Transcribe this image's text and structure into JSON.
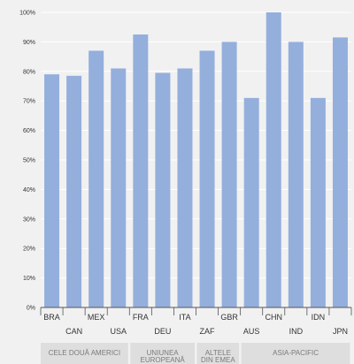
{
  "chart_data": {
    "type": "bar",
    "title": "",
    "xlabel": "",
    "ylabel": "",
    "categories": [
      "BRA",
      "CAN",
      "MEX",
      "USA",
      "FRA",
      "DEU",
      "ITA",
      "ZAF",
      "GBR",
      "AUS",
      "CHN",
      "IND",
      "IDN",
      "JPN"
    ],
    "values": [
      79,
      78.5,
      87,
      81,
      92.5,
      79.5,
      81,
      87,
      90,
      71,
      100,
      90,
      71,
      91.5
    ],
    "ylim": [
      0,
      100
    ],
    "ytick_labels": [
      "0%",
      "10%",
      "20%",
      "30%",
      "40%",
      "50%",
      "60%",
      "70%",
      "80%",
      "90%",
      "100%"
    ],
    "grid": true,
    "bar_color": "#94afdc",
    "gridline_color": "#ffffff",
    "groups": [
      {
        "label_lines": [
          "CELE DOUĂ AMERICI"
        ],
        "count": 4
      },
      {
        "label_lines": [
          "UNIUNEA",
          "EUROPEANĂ"
        ],
        "count": 3
      },
      {
        "label_lines": [
          "ALTELE",
          "DIN EMEA"
        ],
        "count": 2
      },
      {
        "label_lines": [
          "ASIA-PACIFIC"
        ],
        "count": 5
      }
    ]
  }
}
